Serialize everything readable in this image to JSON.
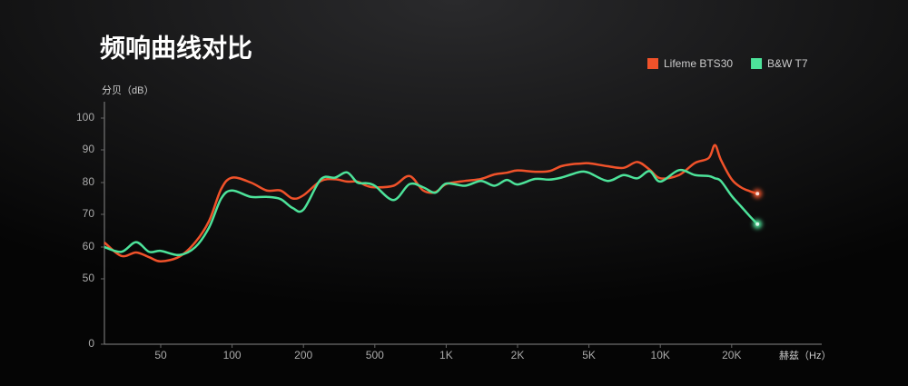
{
  "chart_data": {
    "type": "line",
    "title": "频响曲线对比",
    "y_label": "分贝（dB）",
    "x_label": "赫兹（Hz）",
    "x": [
      30,
      35,
      40,
      45,
      50,
      60,
      70,
      80,
      90,
      100,
      120,
      140,
      160,
      180,
      200,
      250,
      300,
      350,
      400,
      450,
      500,
      600,
      700,
      800,
      900,
      1000,
      1200,
      1400,
      1600,
      1800,
      2000,
      2500,
      3000,
      3500,
      4000,
      4500,
      5000,
      6000,
      7000,
      8000,
      9000,
      10000,
      12000,
      14000,
      16000,
      17000,
      18000,
      20000,
      22000,
      24000,
      26000
    ],
    "series": [
      {
        "name": "Lifeme BTS30",
        "color": "#f0522a",
        "values": [
          61.4,
          57.2,
          58.3,
          56.8,
          55.5,
          57,
          61.5,
          68,
          78,
          81.5,
          80,
          77.5,
          77.5,
          75,
          76,
          80.5,
          81,
          80.3,
          80.3,
          79,
          78.5,
          79,
          82,
          77.5,
          77,
          79.5,
          80.5,
          81.1,
          82.5,
          83,
          83.7,
          83.3,
          83.5,
          85,
          85.6,
          85.8,
          85.9,
          85,
          84.5,
          86.3,
          84,
          81.3,
          82.3,
          86,
          87.5,
          91.5,
          87,
          81,
          78.5,
          77.3,
          76.5
        ]
      },
      {
        "name": "B&W T7",
        "color": "#4de39a",
        "values": [
          60,
          58.5,
          61.5,
          58.5,
          58.8,
          57.5,
          60,
          66,
          75,
          77.5,
          75.5,
          75.5,
          74.8,
          72,
          71.5,
          81,
          81.5,
          83.1,
          80,
          79.8,
          79,
          74.5,
          79.5,
          78.5,
          76.8,
          79.7,
          79,
          80.5,
          79,
          80.8,
          79.4,
          81.1,
          80.9,
          81.5,
          82.5,
          83.3,
          83,
          80.5,
          82.3,
          81.3,
          83.5,
          80.3,
          83.8,
          82.3,
          82,
          81.3,
          80.5,
          75.8,
          72.5,
          69.5,
          67
        ]
      }
    ],
    "xlim": [
      30,
      50000
    ],
    "xticks": [
      50,
      100,
      200,
      500,
      {
        "value": 1000,
        "label": "1K"
      },
      {
        "value": 2000,
        "label": "2K"
      },
      {
        "value": 5000,
        "label": "5K"
      },
      {
        "value": 10000,
        "label": "10K"
      },
      {
        "value": 20000,
        "label": "20K"
      }
    ],
    "ylim": [
      0,
      105
    ],
    "yticks": [
      0,
      50,
      60,
      70,
      80,
      90,
      100
    ],
    "legend": "top-right"
  }
}
